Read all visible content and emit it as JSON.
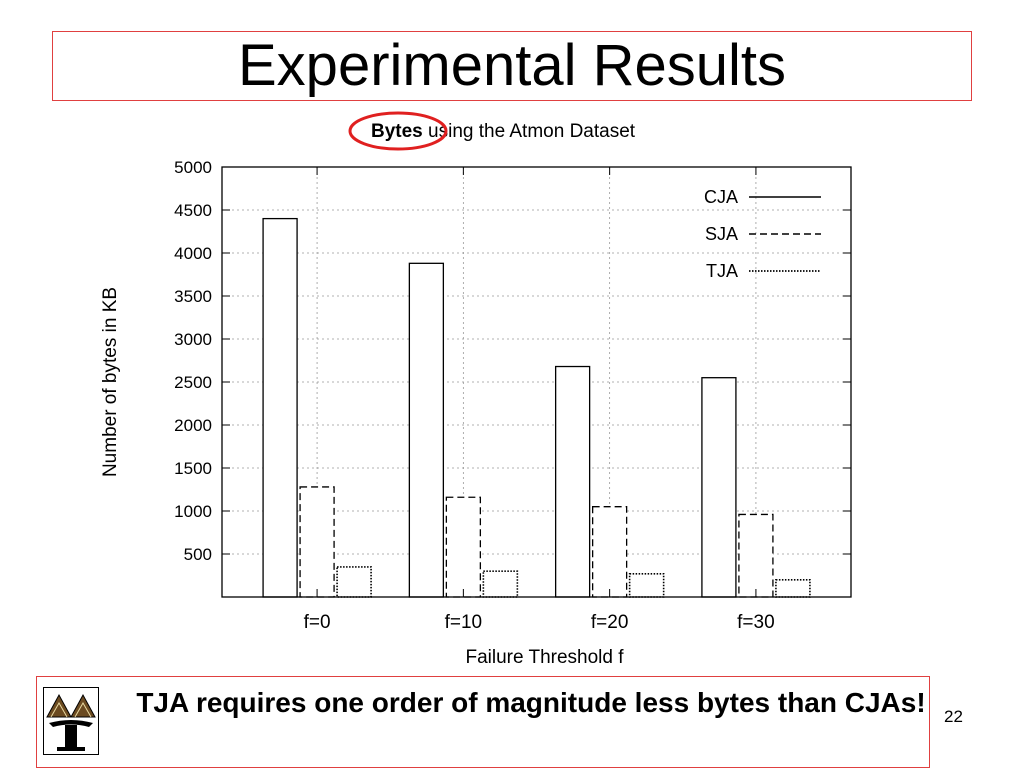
{
  "slide": {
    "title": "Experimental Results",
    "footer_text": "TJA requires one order of magnitude less bytes than CJAs!",
    "page_number": "22",
    "accent": "#e02020"
  },
  "chart_data": {
    "type": "bar",
    "title_highlight": "Bytes",
    "title_rest": " using the Atmon Dataset",
    "xlabel": "Failure Threshold f",
    "ylabel": "Number of bytes in KB",
    "categories": [
      "f=0",
      "f=10",
      "f=20",
      "f=30"
    ],
    "ylim": [
      0,
      5000
    ],
    "yticks": [
      500,
      1000,
      1500,
      2000,
      2500,
      3000,
      3500,
      4000,
      4500,
      5000
    ],
    "grid": true,
    "legend_position": "top-right",
    "series": [
      {
        "name": "CJA",
        "style": "solid",
        "values": [
          4400,
          3880,
          2680,
          2550
        ]
      },
      {
        "name": "SJA",
        "style": "dashed",
        "values": [
          1280,
          1160,
          1050,
          960
        ]
      },
      {
        "name": "TJA",
        "style": "dotted",
        "values": [
          350,
          300,
          270,
          200
        ]
      }
    ]
  }
}
